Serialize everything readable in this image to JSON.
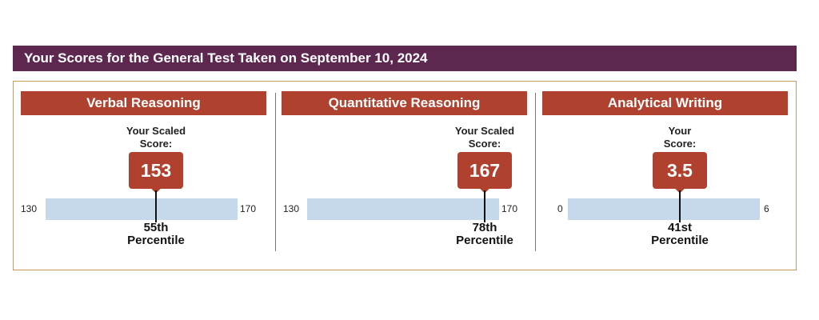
{
  "header": {
    "title": "Your Scores for the General Test Taken on September 10, 2024"
  },
  "sections": [
    {
      "title": "Verbal Reasoning",
      "caption_line1": "Your Scaled",
      "caption_line2": "Score:",
      "score": "153",
      "scale_min": "130",
      "scale_max": "170",
      "score_fraction": 0.575,
      "percentile_line1": "55th",
      "percentile_line2": "Percentile"
    },
    {
      "title": "Quantitative Reasoning",
      "caption_line1": "Your Scaled",
      "caption_line2": "Score:",
      "score": "167",
      "scale_min": "130",
      "scale_max": "170",
      "score_fraction": 0.925,
      "percentile_line1": "78th",
      "percentile_line2": "Percentile"
    },
    {
      "title": "Analytical Writing",
      "caption_line1": "Your",
      "caption_line2": "Score:",
      "score": "3.5",
      "scale_min": "0",
      "scale_max": "6",
      "score_fraction": 0.5833,
      "percentile_line1": "41st",
      "percentile_line2": "Percentile"
    }
  ],
  "colors": {
    "header_bg": "#5e2750",
    "section_title_bg": "#b0412e",
    "score_box_bg": "#b0412e",
    "scale_bar": "#c6d9ec",
    "panel_border": "#c79a5f"
  }
}
